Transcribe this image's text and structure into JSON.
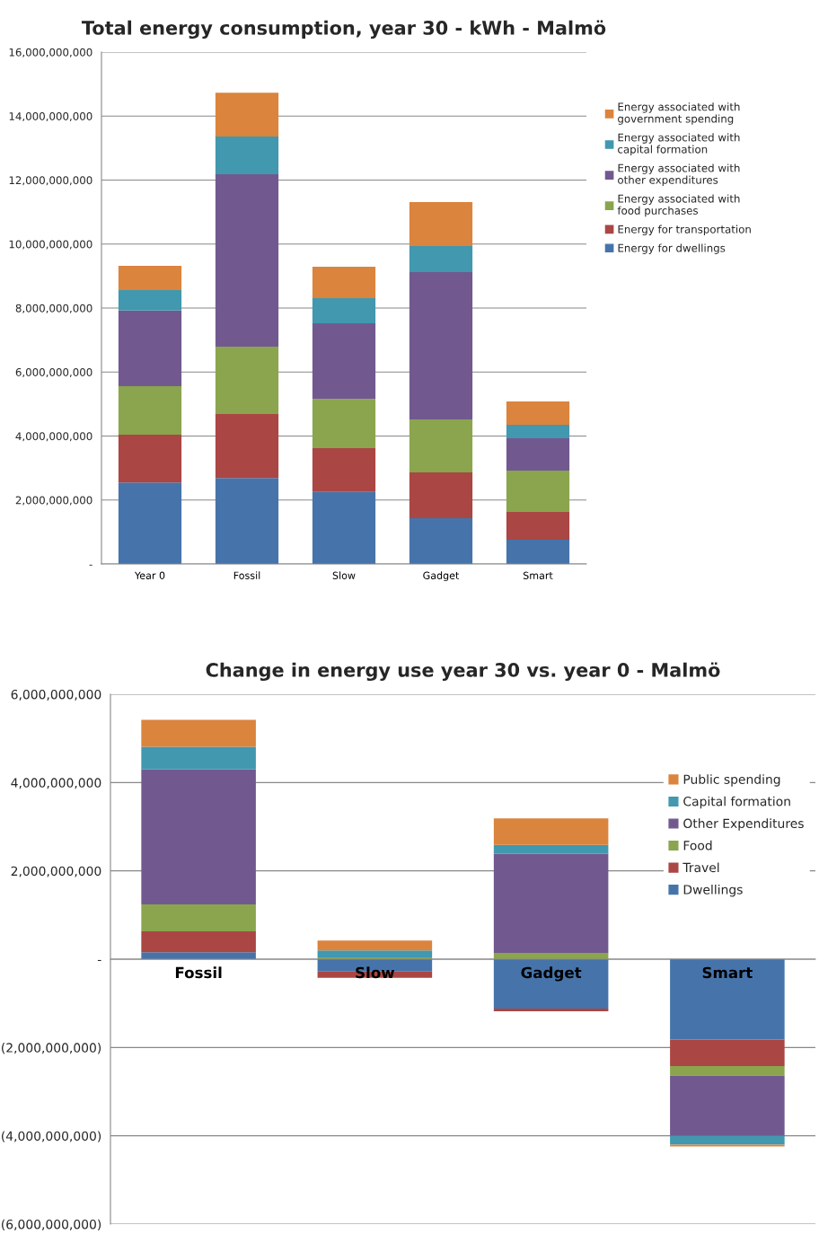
{
  "chart_data": [
    {
      "type": "bar",
      "stacked": true,
      "title": "Total energy consumption, year 30 - kWh - Malmö",
      "categories": [
        "Year 0",
        "Fossil",
        "Slow",
        "Gadget",
        "Smart"
      ],
      "series": [
        {
          "name": "Energy for dwellings",
          "color": "#4674aa",
          "values": [
            2550000000,
            2690000000,
            2250000000,
            1430000000,
            760000000
          ]
        },
        {
          "name": "Energy for transportation",
          "color": "#aa4644",
          "values": [
            1490000000,
            2000000000,
            1370000000,
            1430000000,
            870000000
          ]
        },
        {
          "name": "Energy associated with food purchases",
          "color": "#8aa54d",
          "values": [
            1520000000,
            2100000000,
            1540000000,
            1660000000,
            1290000000
          ]
        },
        {
          "name": "Energy associated with other expenditures",
          "color": "#71598f",
          "values": [
            2360000000,
            5390000000,
            2360000000,
            4600000000,
            1010000000
          ]
        },
        {
          "name": "Energy associated with capital formation",
          "color": "#4198af",
          "values": [
            640000000,
            1180000000,
            790000000,
            820000000,
            420000000
          ]
        },
        {
          "name": "Energy associated with government spending",
          "color": "#db843d",
          "values": [
            760000000,
            1370000000,
            980000000,
            1370000000,
            730000000
          ]
        }
      ],
      "ylim": [
        0,
        16000000000
      ],
      "yticks": [
        {
          "value": 0,
          "label": "-"
        },
        {
          "value": 2000000000,
          "label": "2,000,000,000"
        },
        {
          "value": 4000000000,
          "label": "4,000,000,000"
        },
        {
          "value": 6000000000,
          "label": "6,000,000,000"
        },
        {
          "value": 8000000000,
          "label": "8,000,000,000"
        },
        {
          "value": 10000000000,
          "label": "10,000,000,000"
        },
        {
          "value": 12000000000,
          "label": "12,000,000,000"
        },
        {
          "value": 14000000000,
          "label": "14,000,000,000"
        },
        {
          "value": 16000000000,
          "label": "16,000,000,000"
        }
      ],
      "grid": "y",
      "legend": "right"
    },
    {
      "type": "bar",
      "stacked": true,
      "title": "Change in energy use year 30 vs. year 0 - Malmö",
      "categories": [
        "Fossil",
        "Slow",
        "Gadget",
        "Smart"
      ],
      "series": [
        {
          "name": "Dwellings",
          "color": "#4674aa",
          "values": [
            160000000,
            -280000000,
            -1120000000,
            -1820000000
          ]
        },
        {
          "name": "Travel",
          "color": "#aa4644",
          "values": [
            470000000,
            -140000000,
            -60000000,
            -600000000
          ]
        },
        {
          "name": "Food",
          "color": "#8aa54d",
          "values": [
            610000000,
            40000000,
            140000000,
            -220000000
          ]
        },
        {
          "name": "Other Expenditures",
          "color": "#71598f",
          "values": [
            3060000000,
            0,
            2250000000,
            -1360000000
          ]
        },
        {
          "name": "Capital formation",
          "color": "#4198af",
          "values": [
            510000000,
            160000000,
            200000000,
            -200000000
          ]
        },
        {
          "name": "Public spending",
          "color": "#db843d",
          "values": [
            610000000,
            220000000,
            600000000,
            -40000000
          ]
        }
      ],
      "ylim": [
        -6000000000,
        6000000000
      ],
      "yticks": [
        {
          "value": -6000000000,
          "label": "(6,000,000,000)"
        },
        {
          "value": -4000000000,
          "label": "(4,000,000,000)"
        },
        {
          "value": -2000000000,
          "label": "(2,000,000,000)"
        },
        {
          "value": 0,
          "label": "-"
        },
        {
          "value": 2000000000,
          "label": "2,000,000,000"
        },
        {
          "value": 4000000000,
          "label": "4,000,000,000"
        },
        {
          "value": 6000000000,
          "label": "6,000,000,000"
        }
      ],
      "grid": "y",
      "legend": "right"
    }
  ]
}
